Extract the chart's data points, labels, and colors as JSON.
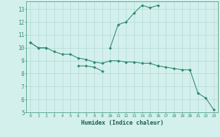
{
  "xlabel": "Humidex (Indice chaleur)",
  "x": [
    0,
    1,
    2,
    3,
    4,
    5,
    6,
    7,
    8,
    9,
    10,
    11,
    12,
    13,
    14,
    15,
    16,
    17,
    18,
    19,
    20,
    21,
    22,
    23
  ],
  "curve_spike": [
    10.4,
    10.0,
    10.0,
    null,
    null,
    null,
    null,
    null,
    null,
    null,
    10.0,
    11.8,
    12.0,
    12.7,
    13.3,
    13.1,
    13.3,
    null,
    null,
    null,
    null,
    null,
    null,
    null
  ],
  "curve_top_flat": [
    10.4,
    10.0,
    10.0,
    9.7,
    9.5,
    9.5,
    null,
    null,
    null,
    null,
    null,
    null,
    null,
    null,
    null,
    null,
    null,
    null,
    null,
    null,
    null,
    null,
    null,
    null
  ],
  "curve_diagonal": [
    10.4,
    10.0,
    10.0,
    9.7,
    9.5,
    9.5,
    9.2,
    9.1,
    8.9,
    8.8,
    9.0,
    9.0,
    8.9,
    8.9,
    8.8,
    8.8,
    8.6,
    8.5,
    8.4,
    8.3,
    8.3,
    null,
    null,
    null
  ],
  "curve_bottom": [
    null,
    null,
    null,
    null,
    null,
    null,
    null,
    null,
    null,
    null,
    null,
    null,
    null,
    null,
    null,
    null,
    8.6,
    null,
    null,
    null,
    8.3,
    6.5,
    6.1,
    5.2
  ],
  "curve_extra": [
    null,
    null,
    null,
    null,
    null,
    null,
    8.6,
    8.6,
    8.5,
    8.2,
    null,
    null,
    null,
    null,
    null,
    null,
    null,
    null,
    null,
    null,
    null,
    null,
    null,
    null
  ],
  "xlim": [
    -0.5,
    23.5
  ],
  "ylim": [
    5.0,
    13.6
  ],
  "yticks": [
    5,
    6,
    7,
    8,
    9,
    10,
    11,
    12,
    13
  ],
  "color": "#2e8b6e",
  "bg_color": "#d4f0ec",
  "grid_color": "#b0d8d4",
  "linewidth": 0.8,
  "markersize": 2.0
}
